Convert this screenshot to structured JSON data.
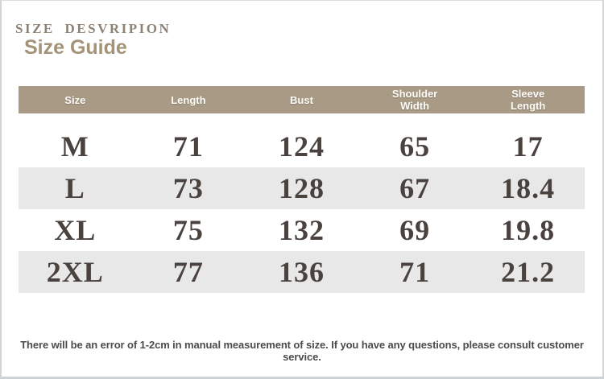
{
  "header": {
    "eyebrow": "SIZE DESVRIPION",
    "title": "Size Guide"
  },
  "table": {
    "columns": [
      "Size",
      "Length",
      "Bust",
      "Shoulder Width",
      "Sleeve Length"
    ],
    "rows": [
      [
        "M",
        "71",
        "124",
        "65",
        "17"
      ],
      [
        "L",
        "73",
        "128",
        "67",
        "18.4"
      ],
      [
        "XL",
        "75",
        "132",
        "69",
        "19.8"
      ],
      [
        "2XL",
        "77",
        "136",
        "71",
        "21.2"
      ]
    ]
  },
  "footer": {
    "note": "There will be an error of 1-2cm in manual measurement of size. If you have any questions, please consult customer service."
  },
  "colors": {
    "header_background": "#a89a85",
    "header_text": "#fdfcfa",
    "row_shade": "#e9e8e8",
    "body_text": "#49423e",
    "eyebrow_text": "#8d8274",
    "title_text": "#a39479",
    "note_text": "#4b4b4b",
    "bottom_border": "#ccd3d7"
  }
}
